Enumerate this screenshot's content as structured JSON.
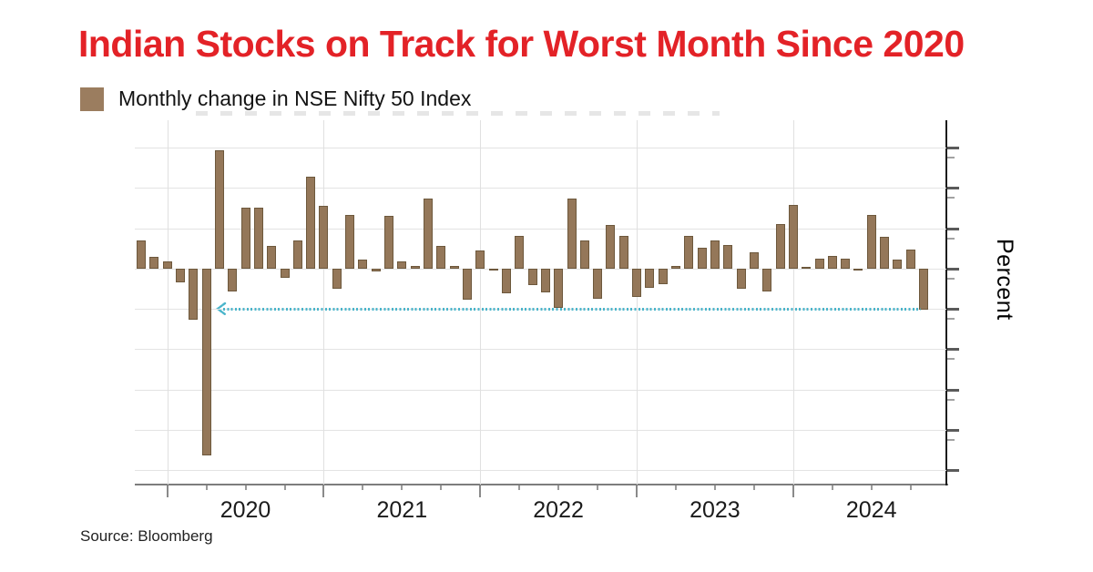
{
  "title": {
    "text": "Indian Stocks on Track for Worst Month Since 2020",
    "color": "#e32227"
  },
  "legend": {
    "label": "Monthly change in NSE Nifty 50 Index",
    "swatch_color": "#9b7d5f"
  },
  "axes": {
    "y_title": "Percent",
    "x_year_labels": [
      "2020",
      "2021",
      "2022",
      "2023",
      "2024"
    ],
    "y_major_ticks_pct": [
      15,
      10,
      5,
      0,
      -5,
      -10,
      -15,
      -20,
      -25
    ]
  },
  "source": {
    "text": "Source: Bloomberg"
  },
  "colors": {
    "bar_fill": "#947759",
    "bar_border": "#6d583c",
    "grid": "#e3e3e3",
    "axis_dark": "#1c1c1c",
    "axis_gray": "#7d7d7d",
    "arrow": "#4ab5cb",
    "title_red": "#e32227"
  },
  "chart_data": {
    "type": "bar",
    "title": "Indian Stocks on Track for Worst Month Since 2020",
    "legend": "Monthly change in NSE Nifty 50 Index",
    "xlabel": "",
    "ylabel": "Percent",
    "ylim": [
      -26.8,
      18.4
    ],
    "grid": "on",
    "gridline_step_pct": 5,
    "x": [
      "Oct 2019",
      "Nov 2019",
      "Dec 2019",
      "Jan 2020",
      "Feb 2020",
      "Mar 2020",
      "Apr 2020",
      "May 2020",
      "Jun 2020",
      "Jul 2020",
      "Aug 2020",
      "Sep 2020",
      "Oct 2020",
      "Nov 2020",
      "Dec 2020",
      "Jan 2021",
      "Feb 2021",
      "Mar 2021",
      "Apr 2021",
      "May 2021",
      "Jun 2021",
      "Jul 2021",
      "Aug 2021",
      "Sep 2021",
      "Oct 2021",
      "Nov 2021",
      "Dec 2021",
      "Jan 2022",
      "Feb 2022",
      "Mar 2022",
      "Apr 2022",
      "May 2022",
      "Jun 2022",
      "Jul 2022",
      "Aug 2022",
      "Sep 2022",
      "Oct 2022",
      "Nov 2022",
      "Dec 2022",
      "Jan 2023",
      "Feb 2023",
      "Mar 2023",
      "Apr 2023",
      "May 2023",
      "Jun 2023",
      "Jul 2023",
      "Aug 2023",
      "Sep 2023",
      "Oct 2023",
      "Nov 2023",
      "Dec 2023",
      "Jan 2024",
      "Feb 2024",
      "Mar 2024",
      "Apr 2024",
      "May 2024",
      "Jun 2024",
      "Jul 2024",
      "Aug 2024",
      "Sep 2024",
      "Oct 2024"
    ],
    "values": [
      3.5,
      1.5,
      0.9,
      -1.7,
      -6.4,
      -23.2,
      14.7,
      -2.8,
      7.5,
      7.5,
      2.8,
      -1.2,
      3.5,
      11.4,
      7.8,
      -2.5,
      6.6,
      1.1,
      -0.4,
      6.5,
      0.9,
      0.3,
      8.7,
      2.8,
      0.3,
      -3.9,
      2.2,
      -0.1,
      -3.1,
      4.0,
      -2.1,
      -3.0,
      -4.9,
      8.7,
      3.5,
      -3.7,
      5.4,
      4.1,
      -3.5,
      -2.4,
      -2.0,
      0.3,
      4.1,
      2.6,
      3.5,
      2.9,
      -2.5,
      2.0,
      -2.8,
      5.5,
      7.9,
      0.0,
      1.2,
      1.6,
      1.2,
      -0.3,
      6.6,
      3.9,
      1.1,
      2.3,
      -5.1
    ],
    "annotation": {
      "type": "dashed-arrow-left",
      "y_pct": -5,
      "spans_from": "Oct 2024",
      "points_toward": "Mar 2020",
      "color": "#4ab5cb"
    },
    "legend_position": "top-left",
    "y_axis_side": "right"
  }
}
